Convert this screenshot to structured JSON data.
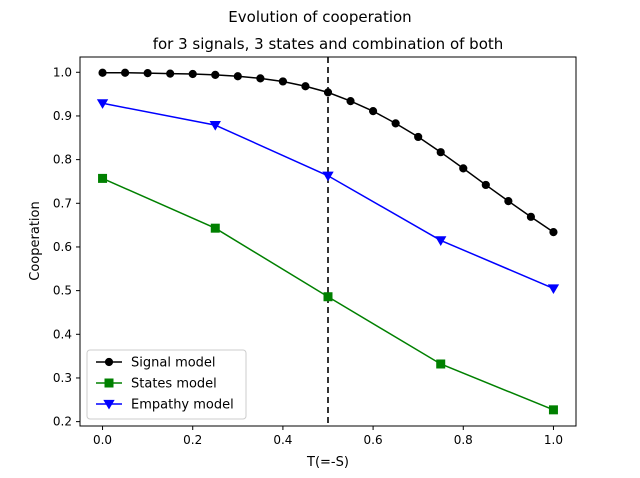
{
  "chart_data": {
    "type": "line",
    "title": "Evolution of cooperation",
    "subtitle": "for 3 signals, 3 states and combination of both",
    "xlabel": "T(=-S)",
    "ylabel": "Cooperation",
    "xlim": [
      -0.05,
      1.05
    ],
    "ylim": [
      0.19,
      1.035
    ],
    "xticks": [
      0.0,
      0.2,
      0.4,
      0.6,
      0.8,
      1.0
    ],
    "xtick_labels": [
      "0.0",
      "0.2",
      "0.4",
      "0.6",
      "0.8",
      "1.0"
    ],
    "yticks": [
      0.2,
      0.3,
      0.4,
      0.5,
      0.6,
      0.7,
      0.8,
      0.9,
      1.0
    ],
    "ytick_labels": [
      "0.2",
      "0.3",
      "0.4",
      "0.5",
      "0.6",
      "0.7",
      "0.8",
      "0.9",
      "1.0"
    ],
    "grid": false,
    "legend_position": "lower-left",
    "vline": {
      "x": 0.5,
      "style": "dashed",
      "color": "#000000"
    },
    "series": [
      {
        "name": "Signal model",
        "color": "#000000",
        "marker": "circle",
        "x": [
          0.0,
          0.05,
          0.1,
          0.15,
          0.2,
          0.25,
          0.3,
          0.35,
          0.4,
          0.45,
          0.5,
          0.55,
          0.6,
          0.65,
          0.7,
          0.75,
          0.8,
          0.85,
          0.9,
          0.95,
          1.0
        ],
        "y": [
          0.999,
          0.999,
          0.998,
          0.997,
          0.996,
          0.994,
          0.991,
          0.986,
          0.979,
          0.968,
          0.954,
          0.934,
          0.911,
          0.883,
          0.852,
          0.817,
          0.78,
          0.742,
          0.705,
          0.669,
          0.634
        ]
      },
      {
        "name": "States model",
        "color": "#008000",
        "marker": "square",
        "x": [
          0.0,
          0.25,
          0.5,
          0.75,
          1.0
        ],
        "y": [
          0.757,
          0.643,
          0.486,
          0.332,
          0.227
        ]
      },
      {
        "name": "Empathy model",
        "color": "#0000ff",
        "marker": "triangle-down",
        "x": [
          0.0,
          0.25,
          0.5,
          0.75,
          1.0
        ],
        "y": [
          0.929,
          0.879,
          0.763,
          0.615,
          0.505
        ]
      }
    ]
  }
}
